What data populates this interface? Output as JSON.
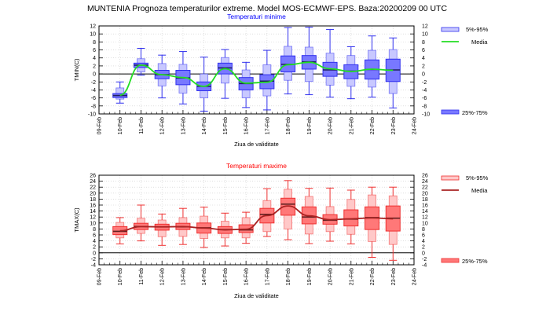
{
  "title": "MUNTENIA  Prognoza temperaturilor extreme.  Model MOS-ECMWF-EPS. Baza:20200209 00 UTC",
  "chart_data": [
    {
      "type": "boxplot",
      "title": "Temperaturi minime",
      "title_color": "#0000ff",
      "ylabel": "TMIN(C)",
      "xlabel": "Ziua de validitate",
      "ylim": [
        -10,
        12
      ],
      "yticks": [
        -10,
        -8,
        -6,
        -4,
        -2,
        0,
        2,
        4,
        6,
        8,
        10,
        12
      ],
      "x_ticks": [
        "09-Feb",
        "10-Feb",
        "11-Feb",
        "12-Feb",
        "13-Feb",
        "14-Feb",
        "15-Feb",
        "16-Feb",
        "17-Feb",
        "18-Feb",
        "19-Feb",
        "20-Feb",
        "21-Feb",
        "22-Feb",
        "23-Feb",
        "24-Feb"
      ],
      "grid": true,
      "legend": {
        "position": "right",
        "items": [
          "5%-95%",
          "Media",
          "25%-75%"
        ]
      },
      "colors": {
        "outer_fill": "#c8c8ff",
        "inner_fill": "#7878ff",
        "stroke": "#3030ee",
        "median": "#202060",
        "mean_line": "#22dd22"
      },
      "categories": [
        "10-Feb",
        "11-Feb",
        "12-Feb",
        "13-Feb",
        "14-Feb",
        "15-Feb",
        "16-Feb",
        "17-Feb",
        "18-Feb",
        "19-Feb",
        "20-Feb",
        "21-Feb",
        "22-Feb",
        "23-Feb"
      ],
      "series": {
        "p5": [
          -7.3,
          -0.3,
          -6.0,
          -7.5,
          -9.3,
          -6.1,
          -8.4,
          -9.0,
          -5.0,
          -5.2,
          -5.8,
          -6.2,
          -5.8,
          -8.5
        ],
        "p10": [
          -6.3,
          0.5,
          -3.0,
          -4.8,
          -6.0,
          -2.3,
          -6.0,
          -5.5,
          -1.6,
          -1.9,
          -2.8,
          -3.1,
          -3.3,
          -4.9
        ],
        "p25": [
          -5.9,
          1.6,
          -1.2,
          -2.7,
          -4.2,
          0.0,
          -4.0,
          -3.7,
          0.5,
          1.2,
          -0.6,
          -1.2,
          -1.3,
          -1.9
        ],
        "median": [
          -5.4,
          2.2,
          -0.2,
          -1.0,
          -3.1,
          1.5,
          -2.4,
          -1.8,
          2.4,
          3.0,
          1.0,
          0.7,
          1.1,
          1.0
        ],
        "p75": [
          -4.9,
          2.7,
          0.9,
          0.9,
          -2.0,
          2.7,
          -0.9,
          -0.2,
          4.5,
          4.6,
          2.9,
          2.3,
          3.5,
          3.7
        ],
        "p90": [
          -3.5,
          3.8,
          2.6,
          2.4,
          0.0,
          4.1,
          1.0,
          2.3,
          6.9,
          6.7,
          5.2,
          4.6,
          5.9,
          6.1
        ],
        "p95": [
          -2.0,
          6.4,
          4.7,
          5.6,
          4.2,
          6.1,
          2.9,
          5.9,
          11.6,
          11.7,
          11.1,
          6.8,
          9.5,
          9.0
        ],
        "mean": [
          -5.3,
          2.2,
          -0.2,
          -0.9,
          -3.1,
          1.3,
          -2.3,
          -2.1,
          2.3,
          2.9,
          1.3,
          0.6,
          1.2,
          0.9
        ]
      }
    },
    {
      "type": "boxplot",
      "title": "Temperaturi maxime",
      "title_color": "#ff0000",
      "ylabel": "TMAX(C)",
      "xlabel": "Ziua de validitate",
      "ylim": [
        -4,
        26
      ],
      "yticks": [
        -4,
        -2,
        0,
        2,
        4,
        6,
        8,
        10,
        12,
        14,
        16,
        18,
        20,
        22,
        24,
        26
      ],
      "x_ticks": [
        "09-Feb",
        "10-Feb",
        "11-Feb",
        "12-Feb",
        "13-Feb",
        "14-Feb",
        "15-Feb",
        "16-Feb",
        "17-Feb",
        "18-Feb",
        "19-Feb",
        "20-Feb",
        "21-Feb",
        "22-Feb",
        "23-Feb",
        "24-Feb"
      ],
      "grid": true,
      "legend": {
        "position": "right",
        "items": [
          "5%-95%",
          "Media",
          "25%-75%"
        ]
      },
      "colors": {
        "outer_fill": "#ffc8c8",
        "inner_fill": "#ff7878",
        "stroke": "#ee3030",
        "median": "#602020",
        "mean_line": "#aa2222"
      },
      "categories": [
        "10-Feb",
        "11-Feb",
        "12-Feb",
        "13-Feb",
        "14-Feb",
        "15-Feb",
        "16-Feb",
        "17-Feb",
        "18-Feb",
        "19-Feb",
        "20-Feb",
        "21-Feb",
        "22-Feb",
        "23-Feb"
      ],
      "series": {
        "p5": [
          3.0,
          4.0,
          2.5,
          2.8,
          1.8,
          2.3,
          3.2,
          5.5,
          4.4,
          3.1,
          3.9,
          3.0,
          -1.5,
          -2.5
        ],
        "p10": [
          5.0,
          6.5,
          5.4,
          5.5,
          4.8,
          5.0,
          5.0,
          7.1,
          8.0,
          6.3,
          7.1,
          6.2,
          3.8,
          2.8
        ],
        "p25": [
          6.1,
          7.8,
          7.6,
          7.8,
          6.6,
          6.5,
          6.8,
          10.0,
          12.6,
          9.7,
          9.6,
          9.0,
          7.8,
          7.3
        ],
        "median": [
          7.2,
          8.8,
          8.7,
          8.7,
          8.4,
          7.8,
          7.7,
          12.9,
          16.3,
          12.0,
          10.9,
          11.3,
          11.8,
          11.6
        ],
        "p75": [
          8.8,
          9.9,
          9.6,
          9.9,
          10.0,
          8.8,
          9.4,
          14.9,
          18.3,
          15.4,
          12.8,
          14.4,
          15.4,
          15.7
        ],
        "p90": [
          10.2,
          11.6,
          11.0,
          11.8,
          12.3,
          10.6,
          11.8,
          17.5,
          21.3,
          18.9,
          15.5,
          17.9,
          19.4,
          19.1
        ],
        "p95": [
          11.8,
          16.0,
          13.0,
          14.9,
          15.3,
          13.3,
          13.6,
          21.5,
          24.2,
          21.6,
          21.7,
          21.0,
          22.0,
          22.0
        ],
        "mean": [
          7.4,
          8.8,
          8.7,
          8.8,
          8.3,
          7.7,
          7.9,
          12.5,
          15.7,
          12.4,
          11.1,
          11.4,
          11.7,
          11.4
        ]
      }
    }
  ]
}
